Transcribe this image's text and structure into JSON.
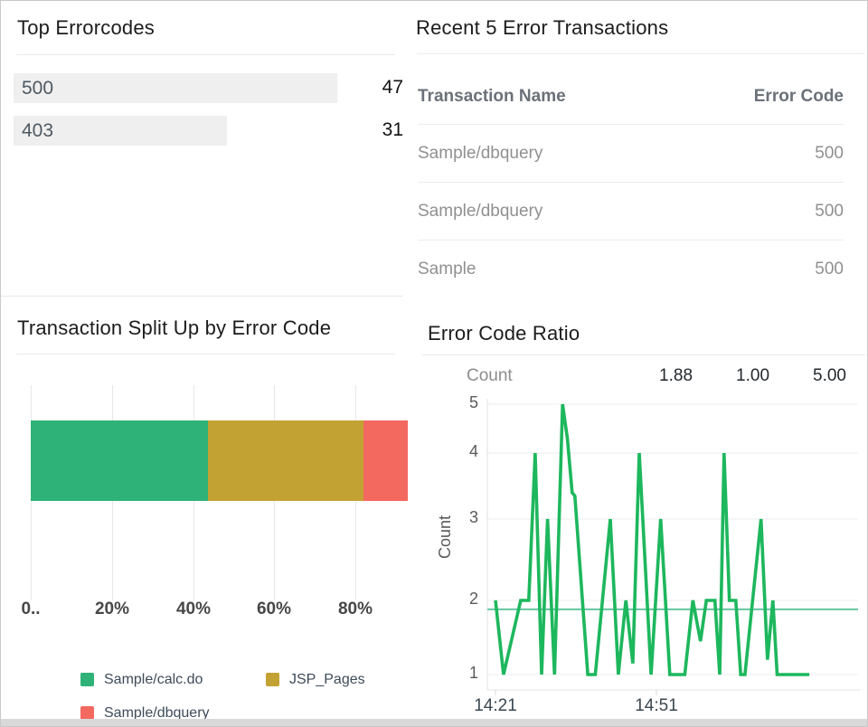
{
  "panels": {
    "top_errorcodes": {
      "title": "Top Errorcodes",
      "rows": [
        {
          "code": "500",
          "count": 47
        },
        {
          "code": "403",
          "count": 31
        }
      ]
    },
    "recent_transactions": {
      "title": "Recent 5 Error Transactions",
      "columns": [
        "Transaction Name",
        "Error Code"
      ],
      "rows": [
        {
          "name": "Sample/dbquery",
          "code": "500"
        },
        {
          "name": "Sample/dbquery",
          "code": "500"
        },
        {
          "name": "Sample",
          "code": "500"
        }
      ]
    },
    "split_up": {
      "title": "Transaction Split Up by Error Code"
    },
    "error_code_ratio": {
      "title": "Error Code Ratio",
      "stats": {
        "label": "Count",
        "values": [
          "1.88",
          "1.00",
          "5.00"
        ]
      }
    }
  },
  "chart_data": [
    {
      "type": "bar",
      "orientation": "horizontal-stacked",
      "title": "Transaction Split Up by Error Code",
      "series": [
        {
          "name": "Sample/calc.do",
          "value": 43.6,
          "color": "#2fb277"
        },
        {
          "name": "JSP_Pages",
          "value": 38.5,
          "color": "#c2a233"
        },
        {
          "name": "Sample/dbquery",
          "value": 17.9,
          "color": "#f3685f"
        }
      ],
      "xticks": [
        {
          "label": "0..",
          "pct": 0
        },
        {
          "label": "20%",
          "pct": 20
        },
        {
          "label": "40%",
          "pct": 40
        },
        {
          "label": "60%",
          "pct": 60
        },
        {
          "label": "80%",
          "pct": 80
        }
      ],
      "xlim": [
        0,
        100
      ],
      "legend_position": "bottom"
    },
    {
      "type": "line",
      "title": "Error Code Ratio",
      "name": "Count",
      "ylabel": "Count",
      "yticks": [
        1,
        2,
        3,
        4,
        5
      ],
      "ylim": [
        1,
        5
      ],
      "xticks": [
        {
          "label": "14:21",
          "minute": 0
        },
        {
          "label": "14:51",
          "minute": 30
        }
      ],
      "average": 1.88,
      "min": 1.0,
      "max": 5.0,
      "color": "#1db75d",
      "avg_color": "#66c6a1",
      "points": [
        [
          0,
          2
        ],
        [
          1.5,
          1
        ],
        [
          4.7,
          2
        ],
        [
          6.2,
          2
        ],
        [
          7.4,
          4
        ],
        [
          8.6,
          1
        ],
        [
          9.7,
          3
        ],
        [
          11,
          1
        ],
        [
          12.5,
          5
        ],
        [
          13.4,
          4.3
        ],
        [
          14.3,
          3.4
        ],
        [
          14.8,
          3.35
        ],
        [
          17.2,
          1
        ],
        [
          18.6,
          1
        ],
        [
          21.4,
          3
        ],
        [
          22.9,
          1
        ],
        [
          24.3,
          2
        ],
        [
          25.6,
          1.15
        ],
        [
          26.8,
          4
        ],
        [
          29,
          1
        ],
        [
          30.8,
          3
        ],
        [
          32.5,
          1
        ],
        [
          35.3,
          1
        ],
        [
          36.8,
          2
        ],
        [
          38.2,
          1.45
        ],
        [
          39.3,
          2
        ],
        [
          40.9,
          2
        ],
        [
          41.8,
          1
        ],
        [
          42.6,
          4
        ],
        [
          43.6,
          2
        ],
        [
          44.8,
          2
        ],
        [
          45.7,
          1
        ],
        [
          46.5,
          1
        ],
        [
          49.5,
          3
        ],
        [
          50.7,
          1.2
        ],
        [
          51.7,
          2
        ],
        [
          52.5,
          1
        ],
        [
          58.5,
          1
        ]
      ]
    }
  ],
  "colors": {
    "green": "#2fb277",
    "gold": "#c2a233",
    "red": "#f3685f",
    "line_green": "#1db75d",
    "avg_line": "#66c6a1",
    "bar_track": "#efefef",
    "divider": "#ececec",
    "grid": "#e8e8e8",
    "bottom_strip": "#d9d9d9"
  }
}
